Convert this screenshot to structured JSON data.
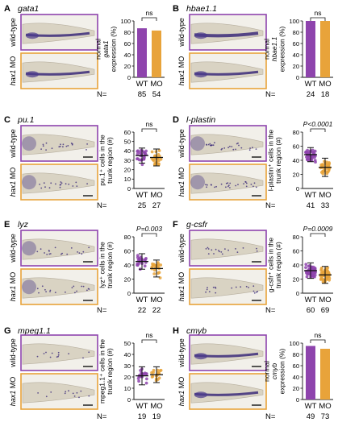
{
  "colors": {
    "wt": "#8e44ad",
    "mo": "#e8a33a",
    "wt_border": "#8e44ad",
    "mo_border": "#e8a33a"
  },
  "row_labels": {
    "wt": "wild-type",
    "mo": "hax1 MO"
  },
  "n_label": "N=",
  "cat_wt": "WT",
  "cat_mo": "MO",
  "panels": [
    {
      "letter": "A",
      "gene": "gata1",
      "kind": "bar",
      "ylabel": [
        "normal",
        "gata1",
        "expression (%)"
      ],
      "yticks": [
        "100",
        "80",
        "60",
        "40",
        "20",
        "0"
      ],
      "stat": "ns",
      "n_wt": "85",
      "n_mo": "54"
    },
    {
      "letter": "B",
      "gene": "hbae1.1",
      "kind": "bar",
      "ylabel": [
        "normal",
        "hbae1.1",
        "expression (%)"
      ],
      "yticks": [
        "100",
        "80",
        "60",
        "40",
        "20",
        "0"
      ],
      "stat": "ns",
      "n_wt": "24",
      "n_mo": "18"
    },
    {
      "letter": "C",
      "gene": "pu.1",
      "kind": "dot",
      "ylabel": [
        "pu.1⁺ cells in the",
        "trunk region (#)"
      ],
      "yticks": [
        "60",
        "50",
        "40",
        "30",
        "20",
        "10",
        "0"
      ],
      "stat": "ns",
      "n_wt": "25",
      "n_mo": "27"
    },
    {
      "letter": "D",
      "gene": "l-plastin",
      "kind": "dot",
      "ylabel": [
        "l-plastin⁺ cells in the",
        "trunk region (#)"
      ],
      "yticks": [
        "80",
        "60",
        "40",
        "20",
        "0"
      ],
      "stat": "P<0.0001",
      "n_wt": "41",
      "n_mo": "33"
    },
    {
      "letter": "E",
      "gene": "lyz",
      "kind": "dot",
      "ylabel": [
        "lyz⁺ cells in the",
        "trunk region (#)"
      ],
      "yticks": [
        "80",
        "60",
        "40",
        "20",
        "0"
      ],
      "stat": "P=0.003",
      "n_wt": "22",
      "n_mo": "22"
    },
    {
      "letter": "F",
      "gene": "g-csfr",
      "kind": "dot",
      "ylabel": [
        "g-csfr⁺ cells in the",
        "trunk region (#)"
      ],
      "yticks": [
        "80",
        "60",
        "40",
        "20",
        "0"
      ],
      "stat": "P=0.0009",
      "n_wt": "60",
      "n_mo": "69"
    },
    {
      "letter": "G",
      "gene": "mpeg1.1",
      "kind": "dot",
      "ylabel": [
        "mpeg1.1⁺ cells in the",
        "trunk region (#)"
      ],
      "yticks": [
        "50",
        "40",
        "30",
        "20",
        "10",
        "0"
      ],
      "stat": "ns",
      "n_wt": "19",
      "n_mo": "19"
    },
    {
      "letter": "H",
      "gene": "cmyb",
      "kind": "bar",
      "ylabel": [
        "normal",
        "cmyb",
        "expression (%)"
      ],
      "yticks": [
        "100",
        "80",
        "60",
        "40",
        "20",
        "0"
      ],
      "stat": "ns",
      "n_wt": "49",
      "n_mo": "73"
    }
  ],
  "chart_data": [
    {
      "panel": "A",
      "type": "bar",
      "categories": [
        "WT",
        "MO"
      ],
      "values": [
        87,
        83
      ],
      "ylim": [
        0,
        100
      ]
    },
    {
      "panel": "B",
      "type": "bar",
      "categories": [
        "WT",
        "MO"
      ],
      "values": [
        100,
        100
      ],
      "ylim": [
        0,
        100
      ]
    },
    {
      "panel": "C",
      "type": "scatter",
      "categories": [
        "WT",
        "MO"
      ],
      "means": [
        35,
        33
      ],
      "sd": [
        8,
        9
      ],
      "n": [
        25,
        27
      ],
      "ylim": [
        0,
        60
      ]
    },
    {
      "panel": "D",
      "type": "scatter",
      "categories": [
        "WT",
        "MO"
      ],
      "means": [
        48,
        30
      ],
      "sd": [
        10,
        13
      ],
      "n": [
        41,
        33
      ],
      "ylim": [
        0,
        80
      ]
    },
    {
      "panel": "E",
      "type": "scatter",
      "categories": [
        "WT",
        "MO"
      ],
      "means": [
        45,
        35
      ],
      "sd": [
        11,
        12
      ],
      "n": [
        22,
        22
      ],
      "ylim": [
        0,
        80
      ]
    },
    {
      "panel": "F",
      "type": "scatter",
      "categories": [
        "WT",
        "MO"
      ],
      "means": [
        32,
        26
      ],
      "sd": [
        11,
        12
      ],
      "n": [
        60,
        69
      ],
      "ylim": [
        0,
        80
      ]
    },
    {
      "panel": "G",
      "type": "scatter",
      "categories": [
        "WT",
        "MO"
      ],
      "means": [
        21,
        22
      ],
      "sd": [
        8,
        7
      ],
      "n": [
        19,
        19
      ],
      "ylim": [
        0,
        50
      ]
    },
    {
      "panel": "H",
      "type": "bar",
      "categories": [
        "WT",
        "MO"
      ],
      "values": [
        95,
        90
      ],
      "ylim": [
        0,
        100
      ]
    }
  ]
}
